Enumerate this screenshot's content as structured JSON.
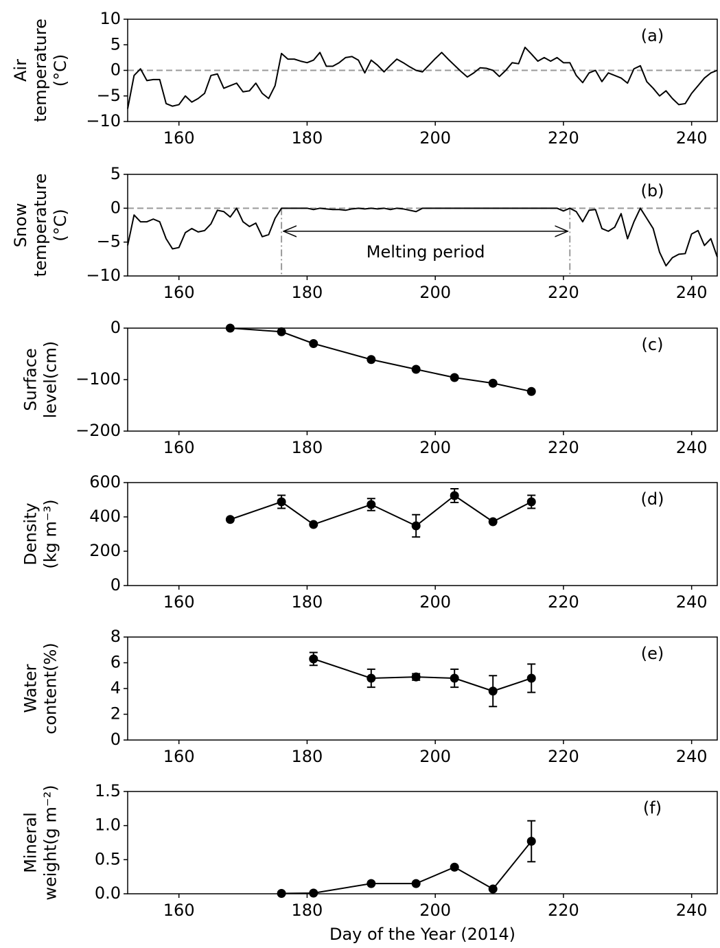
{
  "chart_data": [
    {
      "type": "line",
      "panel_label": "(a)",
      "ylabel": [
        "Air",
        "temperature",
        "(°C)"
      ],
      "xlim": [
        152,
        244
      ],
      "xticks": [
        160,
        180,
        200,
        220,
        240
      ],
      "ylim": [
        -10,
        10
      ],
      "yticks": [
        {
          "value": -10,
          "label": "−10"
        },
        {
          "value": -5,
          "label": "−5"
        },
        0,
        5,
        10
      ],
      "zero_line": true,
      "series": [
        {
          "color": "#000000",
          "markers": false,
          "x": [
            152,
            153,
            154,
            155,
            156,
            157,
            158,
            159,
            160,
            161,
            162,
            163,
            164,
            165,
            166,
            167,
            168,
            169,
            170,
            171,
            172,
            173,
            174,
            175,
            176,
            177,
            178,
            179,
            180,
            181,
            182,
            183,
            184,
            185,
            186,
            187,
            188,
            189,
            190,
            191,
            192,
            193,
            194,
            195,
            196,
            197,
            198,
            199,
            200,
            201,
            202,
            203,
            204,
            205,
            206,
            207,
            208,
            209,
            210,
            211,
            212,
            213,
            214,
            215,
            216,
            217,
            218,
            219,
            220,
            221,
            222,
            223,
            224,
            225,
            226,
            227,
            228,
            229,
            230,
            231,
            232,
            233,
            234,
            235,
            236,
            237,
            238,
            239,
            240,
            241,
            242,
            243,
            244
          ],
          "values": [
            -7.5,
            -1,
            0.3,
            -2,
            -1.8,
            -1.8,
            -6.5,
            -7,
            -6.7,
            -5,
            -6.2,
            -5.5,
            -4.5,
            -1,
            -0.7,
            -3.5,
            -3,
            -2.5,
            -4.2,
            -4,
            -2.5,
            -4.5,
            -5.5,
            -3,
            3.3,
            2.2,
            2.2,
            1.8,
            1.5,
            2,
            3.5,
            0.8,
            0.8,
            1.5,
            2.5,
            2.7,
            2,
            -0.5,
            2,
            1,
            -0.3,
            1,
            2.2,
            1.5,
            0.7,
            0,
            -0.3,
            1,
            2.3,
            3.5,
            2.2,
            1,
            -0.2,
            -1.3,
            -0.5,
            0.5,
            0.4,
            0,
            -1.2,
            0,
            1.5,
            1.3,
            4.5,
            3.2,
            1.8,
            2.5,
            1.8,
            2.5,
            1.5,
            1.5,
            -1,
            -2.4,
            -0.5,
            0,
            -2.2,
            -0.5,
            -1,
            -1.5,
            -2.5,
            0.3,
            0.9,
            -2.2,
            -3.5,
            -5,
            -4,
            -5.5,
            -6.7,
            -6.5,
            -4.5,
            -3,
            -1.5,
            -0.5,
            0
          ]
        }
      ]
    },
    {
      "type": "line",
      "panel_label": "(b)",
      "ylabel": [
        "Snow",
        "temperature",
        "(°C)"
      ],
      "xlim": [
        152,
        244
      ],
      "xticks": [
        160,
        180,
        200,
        220,
        240
      ],
      "ylim": [
        -10,
        5
      ],
      "yticks": [
        {
          "value": -10,
          "label": "−10"
        },
        {
          "value": -5,
          "label": "−5"
        },
        0,
        5
      ],
      "zero_line": true,
      "melting_period": {
        "label": "Melting period",
        "start": 176,
        "end": 221
      },
      "series": [
        {
          "color": "#000000",
          "markers": false,
          "x": [
            152,
            153,
            154,
            155,
            156,
            157,
            158,
            159,
            160,
            161,
            162,
            163,
            164,
            165,
            166,
            167,
            168,
            169,
            170,
            171,
            172,
            173,
            174,
            175,
            176,
            177,
            178,
            179,
            180,
            181,
            182,
            183,
            184,
            185,
            186,
            187,
            188,
            189,
            190,
            191,
            192,
            193,
            194,
            195,
            196,
            197,
            198,
            199,
            200,
            201,
            202,
            203,
            204,
            205,
            206,
            207,
            208,
            209,
            210,
            211,
            212,
            213,
            214,
            215,
            216,
            217,
            218,
            219,
            220,
            221,
            222,
            223,
            224,
            225,
            226,
            227,
            228,
            229,
            230,
            231,
            232,
            233,
            234,
            235,
            236,
            237,
            238,
            239,
            240,
            241,
            242,
            243,
            244
          ],
          "values": [
            -5.5,
            -1,
            -2,
            -2,
            -1.6,
            -2,
            -4.5,
            -6,
            -5.8,
            -3.6,
            -3,
            -3.5,
            -3.3,
            -2.3,
            -0.3,
            -0.5,
            -1.3,
            0,
            -2,
            -2.7,
            -2.2,
            -4.2,
            -3.9,
            -1.5,
            0,
            0,
            0,
            0,
            0,
            -0.2,
            0,
            -0.1,
            -0.2,
            -0.2,
            -0.3,
            -0.1,
            0,
            -0.1,
            0,
            -0.1,
            0,
            -0.2,
            0,
            -0.1,
            -0.3,
            -0.5,
            0,
            0,
            0,
            0,
            0,
            0,
            0,
            0,
            0,
            0,
            0,
            0,
            0,
            0,
            0,
            0,
            0,
            0,
            0,
            0,
            0,
            0,
            -0.4,
            0,
            -0.5,
            -2,
            -0.3,
            -0.2,
            -3,
            -3.4,
            -2.8,
            -0.8,
            -4.5,
            -2,
            0,
            -1.5,
            -3,
            -6.5,
            -8.5,
            -7.3,
            -6.8,
            -6.7,
            -3.8,
            -3.3,
            -5.5,
            -4.5,
            -7.2
          ]
        }
      ]
    },
    {
      "type": "line",
      "panel_label": "(c)",
      "ylabel": [
        "Surface",
        "level(cm)"
      ],
      "xlim": [
        152,
        244
      ],
      "xticks": [
        160,
        180,
        200,
        220,
        240
      ],
      "ylim": [
        -200,
        0
      ],
      "yticks": [
        {
          "value": -200,
          "label": "−200"
        },
        {
          "value": -100,
          "label": "−100"
        },
        0
      ],
      "series": [
        {
          "color": "#000000",
          "markers": true,
          "x": [
            168,
            176,
            181,
            190,
            197,
            203,
            209,
            215
          ],
          "values": [
            0,
            -7,
            -30,
            -61,
            -80,
            -96,
            -107,
            -123
          ]
        }
      ]
    },
    {
      "type": "line",
      "panel_label": "(d)",
      "ylabel": [
        "Density",
        "(kg m⁻³)"
      ],
      "xlim": [
        152,
        244
      ],
      "xticks": [
        160,
        180,
        200,
        220,
        240
      ],
      "ylim": [
        0,
        600
      ],
      "yticks": [
        0,
        200,
        400,
        600
      ],
      "series": [
        {
          "color": "#000000",
          "markers": true,
          "x": [
            168,
            176,
            181,
            190,
            197,
            203,
            209,
            215
          ],
          "values": [
            385,
            488,
            356,
            472,
            348,
            524,
            372,
            488
          ],
          "errors": [
            null,
            38,
            null,
            35,
            65,
            40,
            null,
            38
          ]
        }
      ]
    },
    {
      "type": "line",
      "panel_label": "(e)",
      "ylabel": [
        "Water",
        "content(%)"
      ],
      "xlim": [
        152,
        244
      ],
      "xticks": [
        160,
        180,
        200,
        220,
        240
      ],
      "ylim": [
        0,
        8
      ],
      "yticks": [
        0,
        2,
        4,
        6,
        8
      ],
      "series": [
        {
          "color": "#000000",
          "markers": true,
          "x": [
            181,
            190,
            197,
            203,
            209,
            215
          ],
          "values": [
            6.3,
            4.8,
            4.9,
            4.8,
            3.8,
            4.8
          ],
          "errors": [
            0.5,
            0.7,
            0.25,
            0.7,
            1.2,
            1.1
          ]
        }
      ]
    },
    {
      "type": "line",
      "panel_label": "(f)",
      "ylabel": [
        "Mineral",
        "weight(g m⁻²)"
      ],
      "xlabel": "Day of the Year (2014)",
      "xlim": [
        152,
        244
      ],
      "xticks": [
        160,
        180,
        200,
        220,
        240
      ],
      "ylim": [
        0,
        1.5
      ],
      "yticks": [
        {
          "value": 0,
          "label": "0.0"
        },
        {
          "value": 0.5,
          "label": "0.5"
        },
        {
          "value": 1,
          "label": "1.0"
        },
        {
          "value": 1.5,
          "label": "1.5"
        }
      ],
      "series": [
        {
          "color": "#000000",
          "markers": true,
          "x": [
            176,
            181,
            190,
            197,
            203,
            209,
            215
          ],
          "values": [
            0.005,
            0.01,
            0.15,
            0.15,
            0.39,
            0.07,
            0.77
          ],
          "errors": [
            null,
            null,
            null,
            null,
            null,
            null,
            0.3
          ]
        }
      ]
    }
  ]
}
